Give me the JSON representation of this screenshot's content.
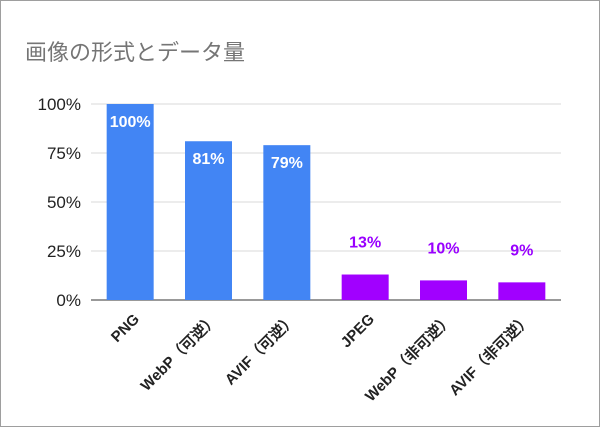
{
  "chart_data": {
    "type": "bar",
    "title": "画像の形式とデータ量",
    "categories": [
      "PNG",
      "WebP（可逆）",
      "AVIF（可逆）",
      "JPEG",
      "WebP（非可逆）",
      "AVIF（非可逆）"
    ],
    "values": [
      100,
      81,
      79,
      13,
      10,
      9
    ],
    "data_labels": [
      "100%",
      "81%",
      "79%",
      "13%",
      "10%",
      "9%"
    ],
    "yticks": [
      "0%",
      "25%",
      "50%",
      "75%",
      "100%"
    ],
    "ylim": [
      0,
      100
    ],
    "grid": true,
    "colors": [
      "#4285f4",
      "#4285f4",
      "#4285f4",
      "#a100ff",
      "#a100ff",
      "#a100ff"
    ],
    "label_inside_color": "#ffffff",
    "label_outside_color": "#9900ff",
    "xlabel": "",
    "ylabel": ""
  }
}
